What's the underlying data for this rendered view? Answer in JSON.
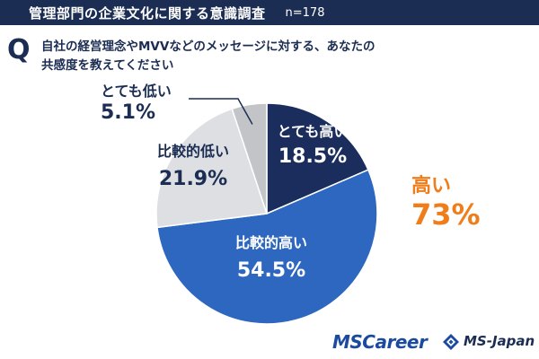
{
  "header": {
    "title": "管理部門の企業文化に関する意識調査",
    "sample": "n=178"
  },
  "question": {
    "mark": "Q",
    "line1": "自社の経営理念やMVVなどのメッセージに対する、あなたの",
    "line2": "共感度を教えてください"
  },
  "chart_data": {
    "type": "pie",
    "slices": [
      {
        "label": "とても高い",
        "value": 18.5,
        "display": "18.5%",
        "color": "#1b2d5c"
      },
      {
        "label": "比較的高い",
        "value": 54.5,
        "display": "54.5%",
        "color": "#2d67c0"
      },
      {
        "label": "比較的低い",
        "value": 21.9,
        "display": "21.9%",
        "color": "#dddfe3"
      },
      {
        "label": "とても低い",
        "value": 5.1,
        "display": "5.1%",
        "color": "#c2c4c8"
      }
    ],
    "summary": {
      "label": "高い",
      "value": "73%",
      "color": "#ee7d1a"
    }
  },
  "footer": {
    "logo_left": "MSCareer",
    "logo_right": "MS-Japan"
  }
}
